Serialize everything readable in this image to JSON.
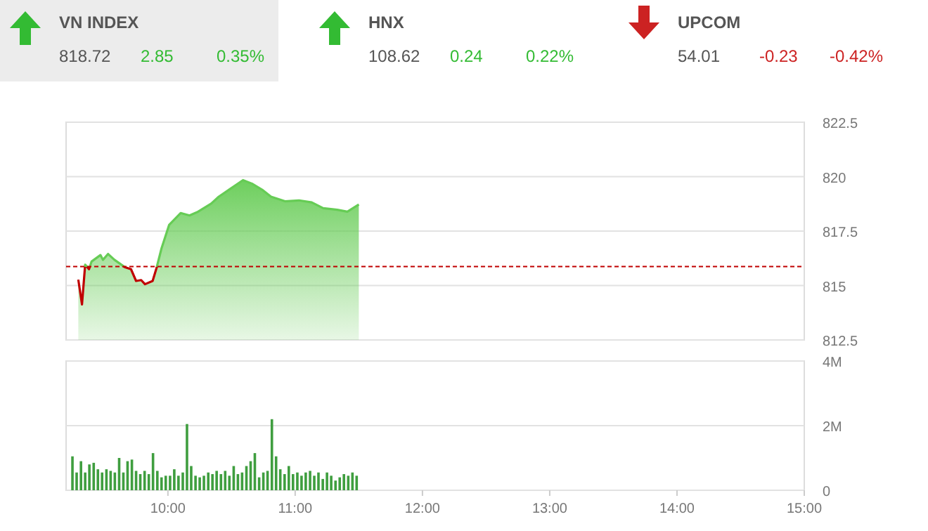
{
  "chart_data": [
    {
      "type": "other",
      "annotations": [
        "VN INDEX",
        "818.72",
        "2.85",
        "0.35%",
        "HNX",
        "108.62",
        "0.24",
        "0.22%",
        "UPCOM",
        "54.01",
        "-0.23",
        "-0.42%"
      ],
      "colors": [
        "#555555",
        "#555555",
        "#33bb33",
        "#33bb33",
        "#555555",
        "#555555",
        "#33bb33",
        "#33bb33",
        "#555555",
        "#555555",
        "#cc2222",
        "#cc2222"
      ]
    },
    {
      "type": "area",
      "tick_labels": "y",
      "grid": "y",
      "xlim": [
        9.2,
        15
      ],
      "ylim": [
        812.5,
        822.5
      ],
      "yticks": [
        812.5,
        815,
        817.5,
        820,
        822.5
      ],
      "ref_lines": [
        {
          "axis": "y",
          "value": 815.87,
          "color": "#c00000",
          "line_style": "dashed"
        }
      ],
      "series": [
        {
          "color": "#66cc55",
          "x": [
            9.296,
            9.325,
            9.35,
            9.38,
            9.4,
            9.47,
            9.49,
            9.53,
            9.58,
            9.66,
            9.71,
            9.75,
            9.79,
            9.82,
            9.88,
            9.91,
            9.95,
            10.01,
            10.1,
            10.17,
            10.23,
            10.34,
            10.4,
            10.48,
            10.59,
            10.66,
            10.74,
            10.81,
            10.92,
            11.03,
            11.13,
            11.22,
            11.33,
            11.41,
            11.5
          ],
          "values": [
            815.27,
            814.13,
            815.96,
            815.75,
            816.1,
            816.4,
            816.18,
            816.45,
            816.18,
            815.85,
            815.75,
            815.21,
            815.25,
            815.06,
            815.21,
            815.79,
            816.71,
            817.79,
            818.33,
            818.22,
            818.37,
            818.76,
            819.08,
            819.4,
            819.84,
            819.68,
            819.4,
            819.08,
            818.87,
            818.91,
            818.82,
            818.55,
            818.48,
            818.39,
            818.72
          ]
        }
      ]
    },
    {
      "type": "bar",
      "grid": "y",
      "xlim": [
        9.2,
        15
      ],
      "xticks": [
        {
          "value": 10,
          "label": "10:00"
        },
        {
          "value": 11,
          "label": "11:00"
        },
        {
          "value": 12,
          "label": "12:00"
        },
        {
          "value": 13,
          "label": "13:00"
        },
        {
          "value": 14,
          "label": "14:00"
        },
        {
          "value": 15,
          "label": "15:00"
        }
      ],
      "ylim": [
        0,
        4
      ],
      "yticks": [
        0,
        {
          "value": 2,
          "label": "2M"
        },
        {
          "value": 4,
          "label": "4M"
        }
      ],
      "series": [
        {
          "color": "#3f9e3f",
          "x": [
            9.25,
            9.283,
            9.317,
            9.35,
            9.383,
            9.417,
            9.45,
            9.483,
            9.517,
            9.55,
            9.583,
            9.617,
            9.65,
            9.683,
            9.717,
            9.75,
            9.783,
            9.817,
            9.85,
            9.883,
            9.917,
            9.95,
            9.983,
            10.017,
            10.05,
            10.083,
            10.117,
            10.15,
            10.183,
            10.217,
            10.25,
            10.283,
            10.317,
            10.35,
            10.383,
            10.417,
            10.45,
            10.483,
            10.517,
            10.55,
            10.583,
            10.617,
            10.65,
            10.683,
            10.717,
            10.75,
            10.783,
            10.817,
            10.85,
            10.883,
            10.917,
            10.95,
            10.983,
            11.017,
            11.05,
            11.083,
            11.117,
            11.15,
            11.183,
            11.217,
            11.25,
            11.283,
            11.317,
            11.35,
            11.383,
            11.417,
            11.45,
            11.483
          ],
          "values": [
            1.05,
            0.55,
            0.9,
            0.55,
            0.8,
            0.85,
            0.65,
            0.55,
            0.65,
            0.6,
            0.55,
            1.0,
            0.55,
            0.9,
            0.95,
            0.6,
            0.5,
            0.6,
            0.5,
            1.15,
            0.6,
            0.4,
            0.45,
            0.45,
            0.65,
            0.45,
            0.55,
            2.05,
            0.75,
            0.45,
            0.4,
            0.45,
            0.55,
            0.5,
            0.6,
            0.5,
            0.6,
            0.45,
            0.75,
            0.5,
            0.55,
            0.75,
            0.9,
            1.15,
            0.4,
            0.55,
            0.6,
            2.2,
            1.05,
            0.65,
            0.5,
            0.75,
            0.5,
            0.55,
            0.45,
            0.55,
            0.6,
            0.45,
            0.55,
            0.35,
            0.55,
            0.45,
            0.3,
            0.4,
            0.5,
            0.45,
            0.55,
            0.45
          ]
        }
      ]
    }
  ]
}
